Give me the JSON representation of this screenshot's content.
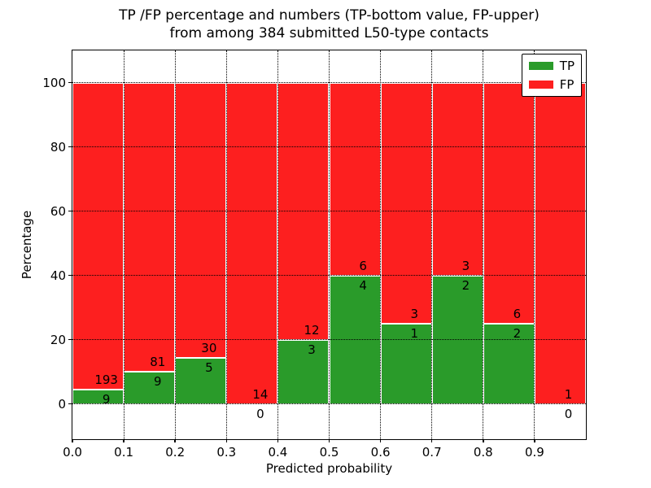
{
  "chart_data": {
    "type": "bar",
    "stacked": true,
    "title": "TP /FP percentage and numbers (TP-bottom value, FP-upper)",
    "subtitle": "from among 384 submitted L50-type contacts",
    "xlabel": "Predicted probability",
    "ylabel": "Percentage",
    "total_contacts": 384,
    "bins": [
      {
        "range": "0.0-0.1",
        "tp": 9,
        "fp": 193,
        "tp_percent": 4.46
      },
      {
        "range": "0.1-0.2",
        "tp": 9,
        "fp": 81,
        "tp_percent": 10.0
      },
      {
        "range": "0.2-0.3",
        "tp": 5,
        "fp": 30,
        "tp_percent": 14.29
      },
      {
        "range": "0.3-0.4",
        "tp": 0,
        "fp": 14,
        "tp_percent": 0.0
      },
      {
        "range": "0.4-0.5",
        "tp": 3,
        "fp": 12,
        "tp_percent": 20.0
      },
      {
        "range": "0.5-0.6",
        "tp": 4,
        "fp": 6,
        "tp_percent": 40.0
      },
      {
        "range": "0.6-0.7",
        "tp": 1,
        "fp": 3,
        "tp_percent": 25.0
      },
      {
        "range": "0.7-0.8",
        "tp": 2,
        "fp": 3,
        "tp_percent": 40.0
      },
      {
        "range": "0.8-0.9",
        "tp": 2,
        "fp": 6,
        "tp_percent": 25.0
      },
      {
        "range": "0.9-1.0",
        "tp": 0,
        "fp": 1,
        "tp_percent": 0.0
      }
    ],
    "legend": [
      {
        "label": "TP",
        "color": "#2a9b2a"
      },
      {
        "label": "FP",
        "color": "#fd1f1f"
      }
    ],
    "x_ticks": [
      "0.0",
      "0.1",
      "0.2",
      "0.3",
      "0.4",
      "0.5",
      "0.6",
      "0.7",
      "0.8",
      "0.9"
    ],
    "y_ticks": [
      "0",
      "20",
      "40",
      "60",
      "80",
      "100"
    ],
    "xlim": [
      0.0,
      1.0
    ],
    "ylim": [
      -11,
      110
    ],
    "grid": "dotted",
    "legend_position": "upper right"
  }
}
